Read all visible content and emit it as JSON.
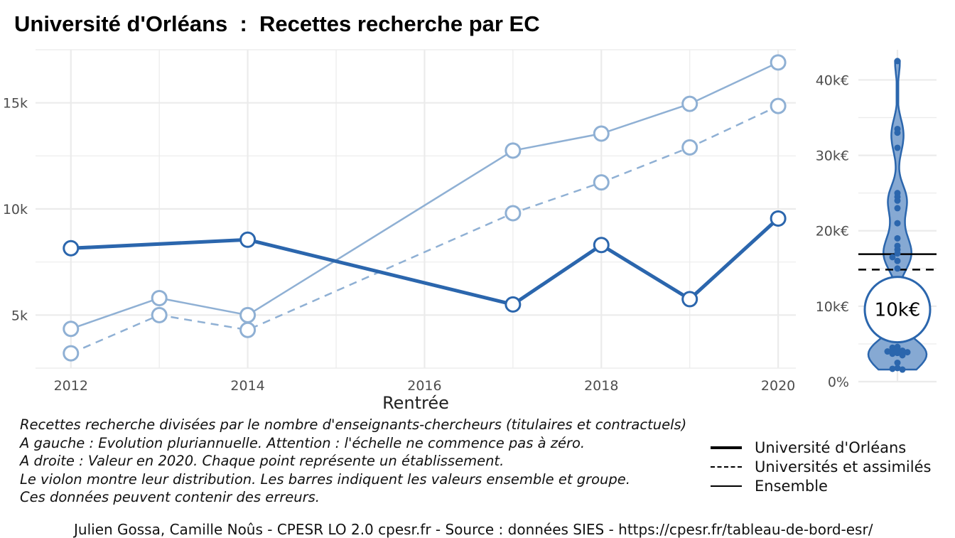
{
  "title": "Université d'Orléans  :  Recettes recherche par EC",
  "colors": {
    "primary": "#2b66ad",
    "light": "#8fb0d4",
    "violin_fill": "#86a9d3",
    "grid": "#ebebeb"
  },
  "chart_data": [
    {
      "type": "line",
      "xlabel": "Rentrée",
      "ylabel": "",
      "xlim": [
        2011.6,
        2020.2
      ],
      "ylim": [
        2500,
        17500
      ],
      "x_ticks": [
        2012,
        2014,
        2016,
        2018,
        2020
      ],
      "y_ticks": [
        {
          "value": 5000,
          "label": "5k"
        },
        {
          "value": 10000,
          "label": "10k"
        },
        {
          "value": 15000,
          "label": "15k"
        }
      ],
      "grid": true,
      "series": [
        {
          "name": "",
          "style": "thin-solid",
          "points": [
            {
              "x": 2012,
              "y": 4350
            },
            {
              "x": 2013,
              "y": 5800
            },
            {
              "x": 2014,
              "y": 5000
            },
            {
              "x": 2017,
              "y": 12750
            },
            {
              "x": 2018,
              "y": 13550
            },
            {
              "x": 2019,
              "y": 14950
            },
            {
              "x": 2020,
              "y": 16900
            }
          ]
        },
        {
          "name": "",
          "style": "thin-dashed",
          "points": [
            {
              "x": 2012,
              "y": 3200
            },
            {
              "x": 2013,
              "y": 5000
            },
            {
              "x": 2014,
              "y": 4300
            },
            {
              "x": 2017,
              "y": 9800
            },
            {
              "x": 2018,
              "y": 11250
            },
            {
              "x": 2019,
              "y": 12900
            },
            {
              "x": 2020,
              "y": 14850
            }
          ]
        },
        {
          "name": "",
          "style": "thick-solid",
          "points": [
            {
              "x": 2012,
              "y": 8150
            },
            {
              "x": 2014,
              "y": 8550
            },
            {
              "x": 2017,
              "y": 5500
            },
            {
              "x": 2018,
              "y": 8300
            },
            {
              "x": 2019,
              "y": 5750
            },
            {
              "x": 2020,
              "y": 9550
            }
          ]
        }
      ]
    },
    {
      "type": "violin",
      "ylim": [
        0,
        44000
      ],
      "y_ticks": [
        {
          "value": 0,
          "label": "0%"
        },
        {
          "value": 10000,
          "label": "10k€"
        },
        {
          "value": 20000,
          "label": "20k€"
        },
        {
          "value": 30000,
          "label": "30k€"
        },
        {
          "value": 40000,
          "label": "40k€"
        }
      ],
      "grid": true,
      "points": [
        42500,
        33500,
        33000,
        31000,
        25000,
        24500,
        24000,
        23000,
        21000,
        19000,
        18000,
        17500,
        17000,
        16500,
        16000,
        15000,
        4600,
        4500,
        4300,
        4200,
        4100,
        4000,
        3900,
        3800,
        3700,
        3500,
        2500,
        1800,
        1700,
        1600
      ],
      "reference_lines": [
        {
          "name": "Ensemble",
          "value": 16900,
          "style": "thin-solid"
        },
        {
          "name": "Universités et assimilés",
          "value": 14850,
          "style": "dashed"
        }
      ],
      "highlight": {
        "value": 9550,
        "label": "10k€"
      }
    }
  ],
  "notes": [
    "Recettes recherche divisées par le nombre d'enseignants-chercheurs (titulaires et contractuels)",
    "A gauche : Evolution pluriannuelle. Attention : l'échelle ne commence pas à zéro.",
    "A droite : Valeur en 2020. Chaque point représente un établissement.",
    "Le violon montre leur distribution. Les barres indiquent les valeurs ensemble et groupe.",
    "Ces données peuvent contenir des erreurs."
  ],
  "legend": [
    {
      "label": "Université d'Orléans",
      "style": "thick"
    },
    {
      "label": "Universités et assimilés",
      "style": "dashed"
    },
    {
      "label": "Ensemble",
      "style": "thin"
    }
  ],
  "caption": "Julien Gossa, Camille Noûs - CPESR LO 2.0 cpesr.fr - Source : données SIES - https://cpesr.fr/tableau-de-bord-esr/"
}
